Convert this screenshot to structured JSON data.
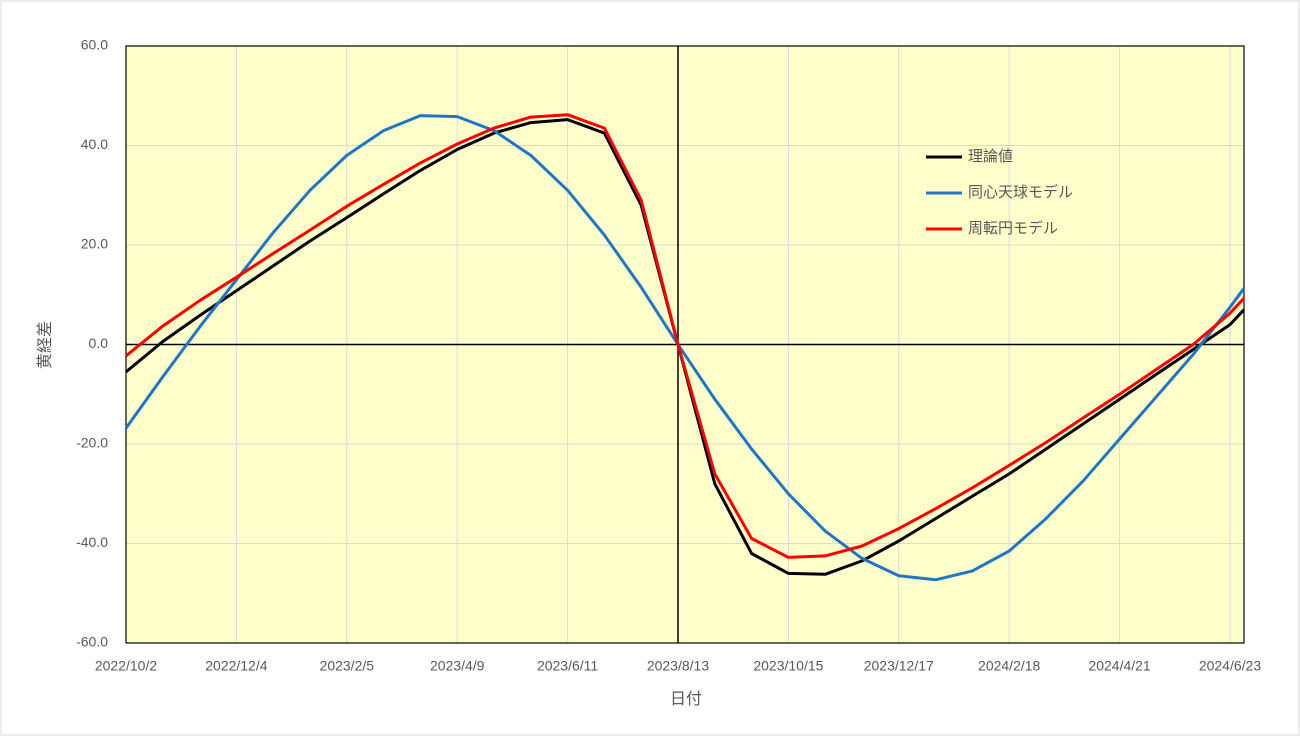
{
  "chart_data": {
    "type": "line",
    "x_label": "日付",
    "y_label": "黄経差",
    "x": [
      "2022/10/2",
      "2022/10/23",
      "2022/11/13",
      "2022/12/4",
      "2022/12/25",
      "2023/1/15",
      "2023/2/5",
      "2023/2/26",
      "2023/3/19",
      "2023/4/9",
      "2023/4/30",
      "2023/5/21",
      "2023/6/11",
      "2023/7/2",
      "2023/7/23",
      "2023/8/13",
      "2023/9/3",
      "2023/9/24",
      "2023/10/15",
      "2023/11/5",
      "2023/11/26",
      "2023/12/17",
      "2024/1/7",
      "2024/1/28",
      "2024/2/18",
      "2024/3/10",
      "2024/3/31",
      "2024/4/21",
      "2024/5/12",
      "2024/6/2",
      "2024/6/23",
      "2024/7/1"
    ],
    "series": [
      {
        "name": "理論値",
        "color": "#000000",
        "values": [
          -5.5,
          0.6,
          5.8,
          10.8,
          15.8,
          20.8,
          25.5,
          30.3,
          35,
          39.2,
          42.5,
          44.6,
          45.2,
          42.5,
          28,
          0,
          -28,
          -42,
          -46,
          -46.2,
          -43.5,
          -39.5,
          -35,
          -30.5,
          -26,
          -21,
          -16,
          -11,
          -6,
          -1,
          4,
          7
        ]
      },
      {
        "name": "同心天球モデル",
        "color": "#1f77c4",
        "values": [
          -16.8,
          -6.5,
          3.5,
          13,
          22.5,
          31,
          38,
          43,
          46,
          45.8,
          43,
          38,
          31,
          22,
          11.5,
          0,
          -11,
          -21,
          -30,
          -37.5,
          -43,
          -46.5,
          -47.3,
          -45.5,
          -41.5,
          -35,
          -27.5,
          -19,
          -10.5,
          -2,
          7.5,
          11.3
        ]
      },
      {
        "name": "周転円モデル",
        "color": "#ff0000",
        "values": [
          -2.3,
          3.7,
          8.8,
          13.5,
          18.3,
          23,
          27.8,
          32.2,
          36.5,
          40.3,
          43.5,
          45.7,
          46.2,
          43.5,
          29,
          0,
          -26,
          -39,
          -42.8,
          -42.5,
          -40.5,
          -37,
          -33,
          -28.8,
          -24.3,
          -19.7,
          -14.8,
          -10,
          -5,
          0,
          6.3,
          9.3
        ]
      }
    ],
    "xlim": [
      "2022/10/2",
      "2024/7/1"
    ],
    "xticks": [
      "2022/10/2",
      "2022/12/4",
      "2023/2/5",
      "2023/4/9",
      "2023/6/11",
      "2023/8/13",
      "2023/10/15",
      "2023/12/17",
      "2024/2/18",
      "2024/4/21",
      "2024/6/23"
    ],
    "ylim": [
      -60,
      60
    ],
    "yticks": [
      {
        "value": -60,
        "label": "-60.0"
      },
      {
        "value": -40,
        "label": "-40.0"
      },
      {
        "value": -20,
        "label": "-20.0"
      },
      {
        "value": 0,
        "label": "0.0"
      },
      {
        "value": 20,
        "label": "20.0"
      },
      {
        "value": 40,
        "label": "40.0"
      },
      {
        "value": 60,
        "label": "60.0"
      }
    ],
    "axis_cross_x": "2023/8/13",
    "grid": true,
    "plot_background": "#ffffcc"
  }
}
